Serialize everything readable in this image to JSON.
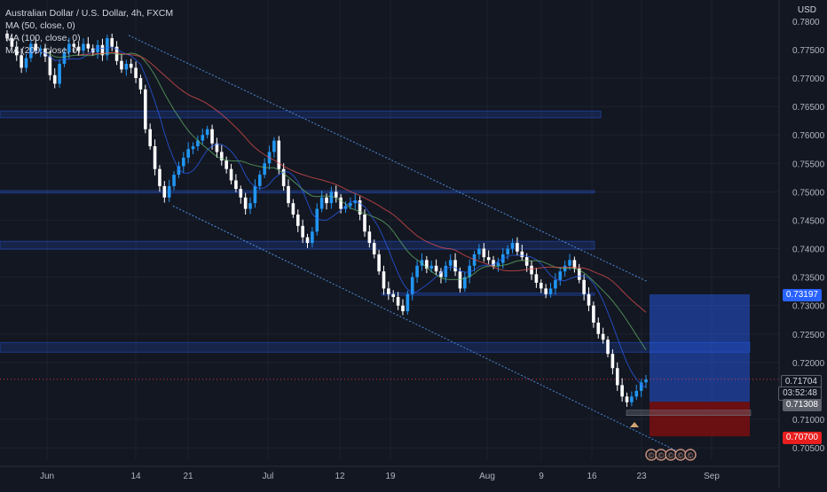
{
  "chart_data": {
    "type": "candlestick",
    "title": "Australian Dollar / U.S. Dollar, 4h, FXCM",
    "currency": "USD",
    "indicators": [
      "MA (50, close, 0)",
      "MA (100, close, 0)",
      "MA (200, close, 0)"
    ],
    "indicator_colors": [
      "#2962ff",
      "#66bb6a",
      "#ef5350"
    ],
    "y_ticks": [
      "0.77000",
      "0.76500",
      "0.76000",
      "0.75500",
      "0.75000",
      "0.74500",
      "0.74000",
      "0.73500",
      "0.73000",
      "0.72500",
      "0.72000",
      "0.71000",
      "0.70500"
    ],
    "y_top_label": "0.7800",
    "y_second_label": "0.77500",
    "ylim": [
      0.7045,
      0.7805
    ],
    "x_ticks": [
      "Jun",
      "14",
      "21",
      "Jul",
      "12",
      "19",
      "Aug",
      "9",
      "16",
      "23",
      "Sep"
    ],
    "price_labels": {
      "target": "0.73197",
      "current": "0.71704",
      "countdown": "03:52:48",
      "entry": "0.71308",
      "stop": "0.70700"
    },
    "close_series": [
      0.777,
      0.7755,
      0.774,
      0.7718,
      0.7735,
      0.776,
      0.7748,
      0.7752,
      0.7738,
      0.7705,
      0.769,
      0.7725,
      0.7745,
      0.776,
      0.7755,
      0.7748,
      0.776,
      0.7752,
      0.7745,
      0.7758,
      0.774,
      0.777,
      0.7755,
      0.773,
      0.7715,
      0.7725,
      0.7718,
      0.77,
      0.768,
      0.761,
      0.758,
      0.754,
      0.751,
      0.749,
      0.751,
      0.753,
      0.7545,
      0.756,
      0.7575,
      0.758,
      0.759,
      0.76,
      0.761,
      0.7585,
      0.757,
      0.7555,
      0.754,
      0.752,
      0.7505,
      0.749,
      0.747,
      0.748,
      0.751,
      0.753,
      0.755,
      0.757,
      0.759,
      0.754,
      0.751,
      0.748,
      0.746,
      0.744,
      0.742,
      0.741,
      0.743,
      0.747,
      0.749,
      0.748,
      0.75,
      0.749,
      0.747,
      0.7475,
      0.748,
      0.7485,
      0.746,
      0.743,
      0.741,
      0.739,
      0.736,
      0.733,
      0.732,
      0.7315,
      0.73,
      0.729,
      0.732,
      0.735,
      0.737,
      0.738,
      0.7365,
      0.737,
      0.736,
      0.735,
      0.737,
      0.738,
      0.736,
      0.733,
      0.735,
      0.737,
      0.739,
      0.74,
      0.7385,
      0.738,
      0.737,
      0.7375,
      0.739,
      0.74,
      0.741,
      0.7395,
      0.7385,
      0.737,
      0.7355,
      0.734,
      0.733,
      0.732,
      0.733,
      0.7345,
      0.736,
      0.737,
      0.738,
      0.7365,
      0.7345,
      0.732,
      0.73,
      0.727,
      0.725,
      0.724,
      0.7215,
      0.719,
      0.716,
      0.714,
      0.713,
      0.714,
      0.715,
      0.7165,
      0.717
    ]
  },
  "watermarks": [
    "©",
    "©",
    "©",
    "©",
    "©"
  ]
}
